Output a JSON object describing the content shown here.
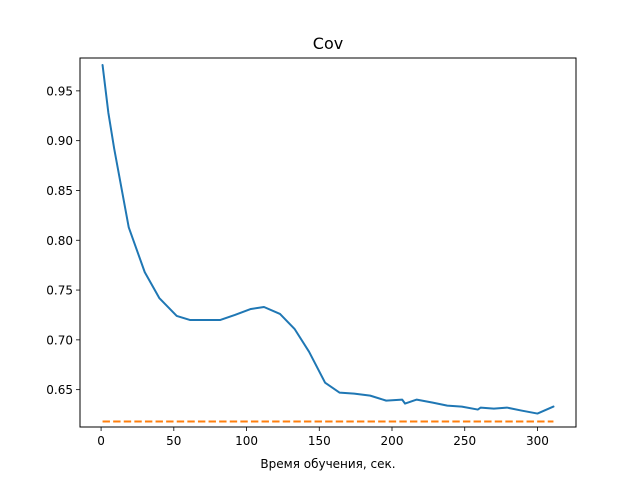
{
  "chart_data": {
    "type": "line",
    "title": "Cov",
    "xlabel": "Время обучения, сек.",
    "ylabel": "",
    "xlim": [
      -14.5,
      326.5
    ],
    "ylim": [
      0.6125,
      0.983
    ],
    "xticks": [
      0,
      50,
      100,
      150,
      200,
      250,
      300
    ],
    "xtick_labels": [
      "0",
      "50",
      "100",
      "150",
      "200",
      "250",
      "300"
    ],
    "yticks": [
      0.65,
      0.7,
      0.75,
      0.8,
      0.85,
      0.9,
      0.95
    ],
    "ytick_labels": [
      "0.65",
      "0.70",
      "0.75",
      "0.80",
      "0.85",
      "0.90",
      "0.95"
    ],
    "grid": false,
    "legend": "none",
    "series": [
      {
        "color": "#1f77b4",
        "linestyle": "solid",
        "x": [
          1,
          5,
          9,
          19,
          30,
          40,
          52,
          61,
          71,
          82,
          92,
          103,
          112,
          123,
          133,
          143,
          154,
          164,
          174,
          185,
          196,
          207,
          209,
          217,
          228,
          238,
          248,
          259,
          261,
          270,
          279,
          289,
          300,
          311
        ],
        "y": [
          0.976,
          0.928,
          0.892,
          0.813,
          0.768,
          0.742,
          0.724,
          0.72,
          0.72,
          0.72,
          0.725,
          0.731,
          0.733,
          0.726,
          0.711,
          0.688,
          0.657,
          0.647,
          0.646,
          0.644,
          0.639,
          0.64,
          0.636,
          0.64,
          0.637,
          0.634,
          0.633,
          0.63,
          0.632,
          0.631,
          0.632,
          0.629,
          0.626,
          0.633
        ]
      },
      {
        "color": "#ff7f0e",
        "linestyle": "dashed",
        "x": [
          1,
          311
        ],
        "y": [
          0.618,
          0.618
        ]
      }
    ]
  }
}
